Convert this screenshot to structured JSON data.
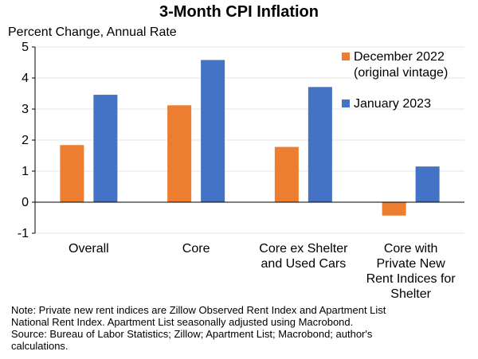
{
  "chart_data": {
    "type": "bar",
    "title": "3-Month CPI Inflation",
    "ylabel": "Percent Change, Annual Rate",
    "xlabel": "",
    "ylim": [
      -1,
      5
    ],
    "yticks": [
      "5",
      "4",
      "3",
      "2",
      "1",
      "0",
      "-1"
    ],
    "categories": [
      [
        "Overall"
      ],
      [
        "Core"
      ],
      [
        "Core ex Shelter",
        "and Used Cars"
      ],
      [
        "Core with",
        "Private New",
        "Rent Indices for",
        "Shelter"
      ]
    ],
    "series": [
      {
        "name": "December 2022 (original vintage)",
        "legend_lines": [
          "December 2022",
          "(original vintage)"
        ],
        "color": "#ED7D31",
        "values": [
          1.84,
          3.12,
          1.78,
          -0.43
        ]
      },
      {
        "name": "January 2023",
        "legend_lines": [
          "January 2023"
        ],
        "color": "#4472C4",
        "values": [
          3.46,
          4.58,
          3.71,
          1.15
        ]
      }
    ],
    "grid": true,
    "legend_position": "top-right"
  },
  "note_lines": [
    "Note: Private new rent indices are Zillow Observed Rent Index and Apartment List",
    "National Rent Index. Apartment List seasonally adjusted using Macrobond.",
    "Source: Bureau of Labor Statistics; Zillow; Apartment List; Macrobond; author's",
    "calculations."
  ]
}
